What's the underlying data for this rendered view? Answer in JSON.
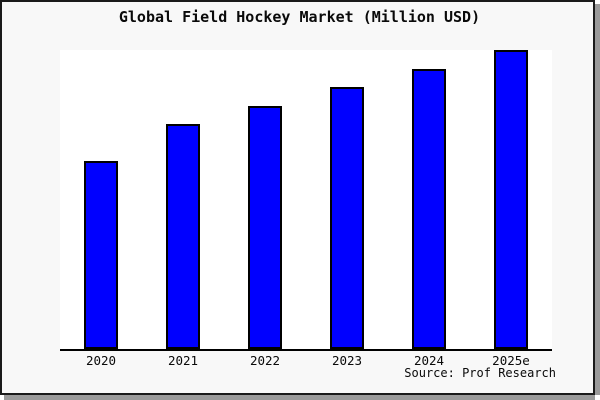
{
  "page": {
    "title": "Global Field Hockey Market (Million USD)",
    "source_note": "Source: Prof Research"
  },
  "chart_data": {
    "type": "bar",
    "title": "Global Field Hockey Market (Million USD)",
    "categories": [
      "2020",
      "2021",
      "2022",
      "2023",
      "2024",
      "2025e"
    ],
    "values": [
      62.9,
      75.3,
      81.3,
      87.6,
      93.6,
      100
    ],
    "value_unit": "relative index (% of tallest bar; y-axis is unlabeled in the image)",
    "xlabel": "",
    "ylabel": "",
    "ylim": [
      0,
      100
    ],
    "grid": false,
    "legend": false,
    "bar_color": "#0000ff",
    "bar_border_color": "#000000",
    "source": "Source: Prof Research"
  },
  "colors": {
    "background": "#f8f8f8",
    "plot_background": "#ffffff",
    "axis": "#000000",
    "text": "#0a0a0a",
    "frame_border": "#1a1a1a",
    "shadow": "#9a9a9a"
  }
}
